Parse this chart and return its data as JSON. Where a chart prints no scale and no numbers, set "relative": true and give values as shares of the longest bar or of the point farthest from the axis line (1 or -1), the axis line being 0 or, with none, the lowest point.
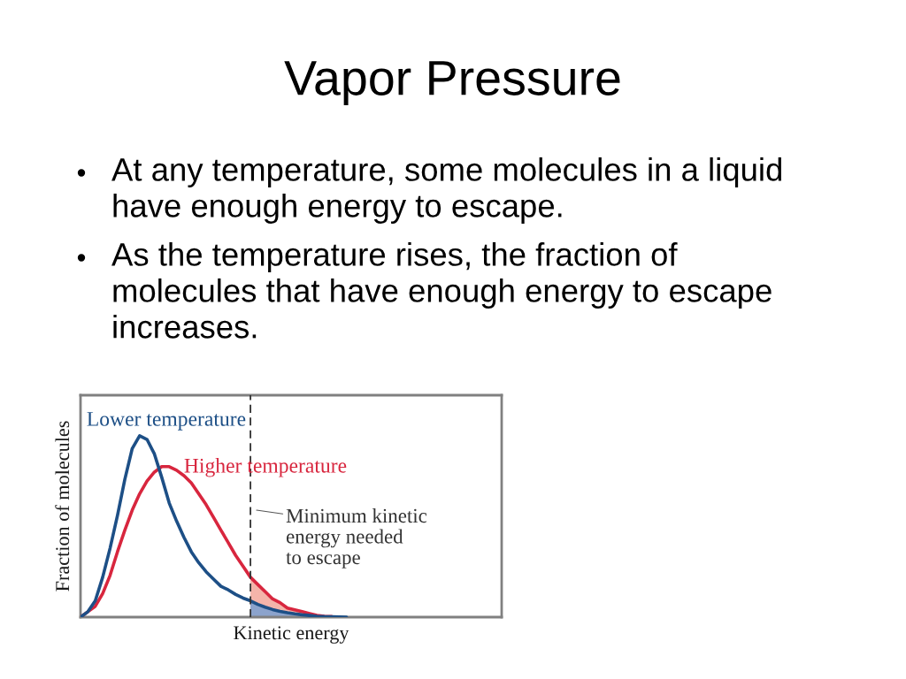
{
  "chart_data": {
    "type": "line",
    "title": "Vapor Pressure",
    "annotations": [
      "At any temperature, some molecules in a liquid\nhave enough energy to escape.",
      "As the temperature rises, the fraction of\nmolecules that have enough energy to escape\nincreases.",
      "Minimum kinetic\nenergy needed\nto escape"
    ],
    "xlabel": "Kinetic energy",
    "ylabel": "Fraction of molecules",
    "relative": true,
    "tick_labels": false,
    "categories": [
      null,
      null,
      null,
      null,
      null,
      null,
      null,
      null,
      null,
      null,
      null,
      null,
      null,
      null,
      null,
      null,
      null,
      null,
      null,
      null,
      null,
      null,
      null,
      null,
      null,
      null,
      null,
      null,
      null,
      null,
      null,
      null,
      null,
      null,
      null,
      null,
      null,
      null,
      null,
      null,
      null,
      null,
      null,
      null,
      null,
      null,
      null,
      null,
      null,
      null,
      null,
      null,
      null,
      null,
      null,
      null,
      null,
      null
    ],
    "series": [
      {
        "type": "area",
        "color": "#f4b4aa",
        "values": [
          null,
          null,
          null,
          null,
          null,
          null,
          null,
          null,
          null,
          null,
          null,
          null,
          null,
          null,
          null,
          null,
          null,
          null,
          null,
          null,
          null,
          null,
          null,
          0.22,
          0.18,
          0.14,
          0.1,
          0.08,
          0.05,
          0.04,
          0.03,
          0.02,
          0.01,
          0.005,
          0.003,
          null,
          null,
          null,
          null,
          null,
          null,
          null,
          null,
          null,
          null,
          null,
          null,
          null,
          null,
          null,
          null,
          null,
          null,
          null,
          null,
          null,
          null,
          null
        ]
      },
      {
        "type": "area",
        "color": "#8ca3cc",
        "values": [
          null,
          null,
          null,
          null,
          null,
          null,
          null,
          null,
          null,
          null,
          null,
          null,
          null,
          null,
          null,
          null,
          null,
          null,
          null,
          null,
          null,
          null,
          null,
          0.09,
          0.07,
          0.055,
          0.042,
          0.032,
          0.024,
          0.018,
          0.013,
          0.009,
          0.005,
          0.003,
          0.002,
          null,
          null,
          null,
          null,
          null,
          null,
          null,
          null,
          null,
          null,
          null,
          null,
          null,
          null,
          null,
          null,
          null,
          null,
          null,
          null,
          null,
          null,
          null
        ]
      },
      {
        "name": "Higher temperature",
        "color": "#d8263e",
        "values": [
          0,
          0.03,
          0.06,
          0.13,
          0.23,
          0.36,
          0.48,
          0.59,
          0.68,
          0.75,
          0.8,
          0.83,
          0.83,
          0.81,
          0.78,
          0.74,
          0.68,
          0.62,
          0.55,
          0.48,
          0.41,
          0.34,
          0.28,
          0.22,
          0.18,
          0.14,
          0.1,
          0.08,
          0.05,
          0.04,
          0.03,
          0.02,
          0.01,
          0.005,
          0.003,
          null,
          null,
          null,
          null,
          null,
          null,
          null,
          null,
          null,
          null,
          null,
          null,
          null,
          null,
          null,
          null,
          null,
          null,
          null,
          null,
          null,
          null,
          null
        ]
      },
      {
        "name": "Lower temperature",
        "color": "#1d4f86",
        "values": [
          0,
          0.03,
          0.09,
          0.22,
          0.38,
          0.56,
          0.76,
          0.93,
          1.0,
          0.98,
          0.9,
          0.77,
          0.63,
          0.53,
          0.44,
          0.36,
          0.3,
          0.25,
          0.21,
          0.17,
          0.15,
          0.125,
          0.105,
          0.09,
          0.07,
          0.055,
          0.042,
          0.032,
          0.024,
          0.018,
          0.013,
          0.009,
          0.005,
          0.003,
          0.002,
          0.001,
          0,
          null,
          null,
          null,
          null,
          null,
          null,
          null,
          null,
          null,
          null,
          null,
          null,
          null,
          null,
          null,
          null,
          null,
          null,
          null,
          null,
          null
        ]
      }
    ]
  }
}
